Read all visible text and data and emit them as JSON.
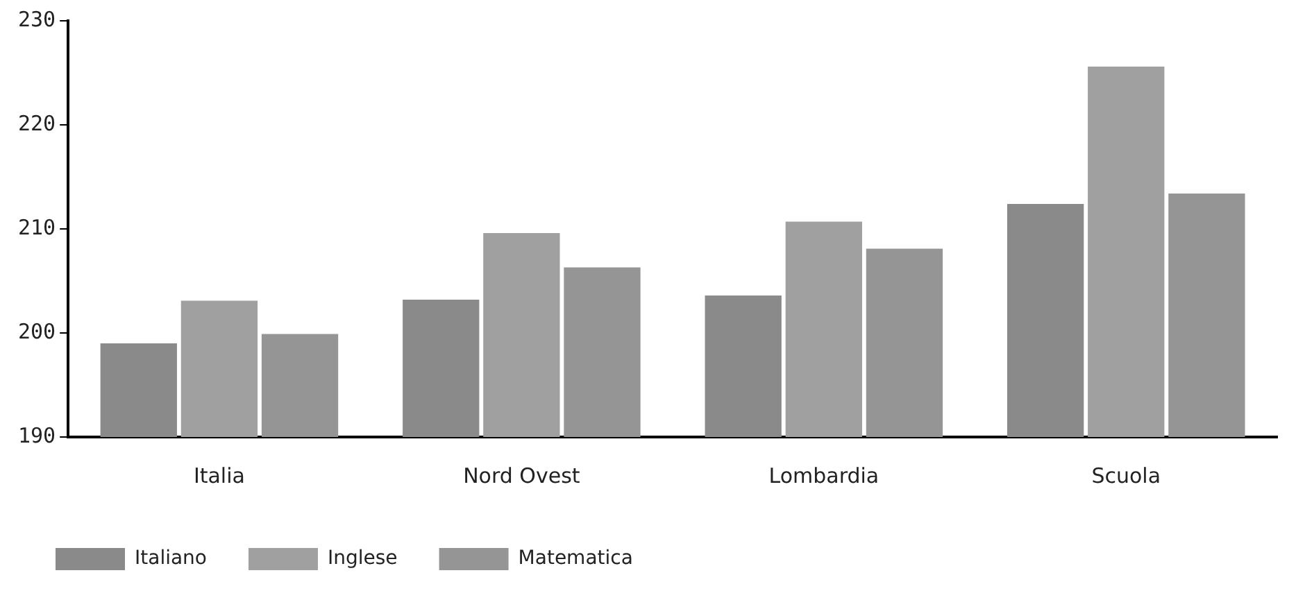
{
  "chart_data": {
    "type": "bar",
    "categories": [
      "Italia",
      "Nord Ovest",
      "Lombardia",
      "Scuola"
    ],
    "series": [
      {
        "name": "Italiano",
        "color": "#8a8a8a",
        "values": [
          199,
          203.2,
          203.6,
          212.4
        ]
      },
      {
        "name": "Inglese",
        "color": "#a0a0a0",
        "values": [
          203.1,
          209.6,
          210.7,
          225.6
        ]
      },
      {
        "name": "Matematica",
        "color": "#959595",
        "values": [
          199.9,
          206.3,
          208.1,
          213.4
        ]
      }
    ],
    "ylim": [
      190,
      230
    ],
    "yticks": [
      190,
      200,
      210,
      220,
      230
    ],
    "grid": false,
    "legend": "bottom left"
  }
}
